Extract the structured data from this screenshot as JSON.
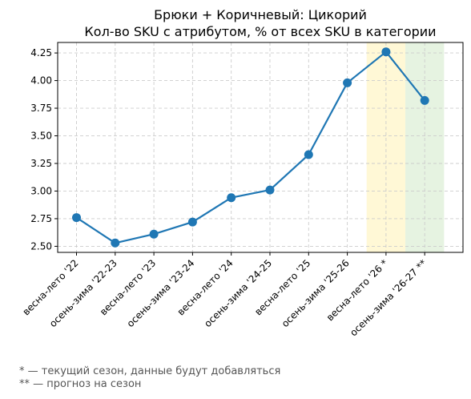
{
  "chart_data": {
    "type": "line",
    "title": "Брюки + Коричневый: Цикорий",
    "subtitle": "Кол-во SKU с атрибутом, % от всех SKU в категории",
    "categories": [
      "весна-лето '22",
      "осень-зима '22-23",
      "весна-лето '23",
      "осень-зима '23-24",
      "весна-лето '24",
      "осень-зима '24-25",
      "весна-лето '25",
      "осень-зима '25-26",
      "весна-лето '26 *",
      "осень-зима '26-27 **"
    ],
    "values": [
      2.76,
      2.53,
      2.61,
      2.72,
      2.94,
      3.01,
      3.33,
      3.98,
      4.26,
      3.82
    ],
    "ylim": [
      2.445,
      4.345
    ],
    "yticks": [
      2.5,
      2.75,
      3.0,
      3.25,
      3.5,
      3.75,
      4.0,
      4.25
    ],
    "ytick_labels": [
      "2.50",
      "2.75",
      "3.00",
      "3.25",
      "3.50",
      "3.75",
      "4.00",
      "4.25"
    ],
    "grid": true,
    "line_color": "#1f77b4",
    "highlights": [
      {
        "category_index": 8,
        "color": "#fff8d6",
        "meaning": "current season"
      },
      {
        "category_index": 9,
        "color": "#e6f3e1",
        "meaning": "forecast"
      }
    ],
    "footnotes": [
      "* — текущий сезон, данные будут добавляться",
      "** — прогноз на сезон"
    ]
  }
}
